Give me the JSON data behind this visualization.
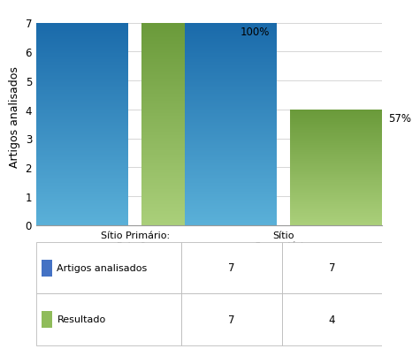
{
  "categories": [
    "Sítio Primário:\nPulmão",
    "Sítio\nSecundário:\nAbdominal"
  ],
  "series": [
    {
      "name": "Artigos analisados",
      "values": [
        7,
        7
      ],
      "color_top": "#1a6aaa",
      "color_bottom": "#5ab0d8"
    },
    {
      "name": "Resultado",
      "values": [
        7,
        4
      ],
      "color_top": "#6a9a3a",
      "color_bottom": "#aacf7a"
    }
  ],
  "annotations": [
    {
      "group": 0,
      "series": 1,
      "text": "100%"
    },
    {
      "group": 1,
      "series": 1,
      "text": "57%"
    }
  ],
  "ylabel": "Artigos analisados",
  "ylim": [
    0,
    7.5
  ],
  "yticks": [
    0,
    1,
    2,
    3,
    4,
    5,
    6,
    7
  ],
  "table_rows": [
    [
      "Artigos analisados",
      "7",
      "7"
    ],
    [
      "Resultado",
      "7",
      "4"
    ]
  ],
  "legend_colors": [
    "#4472c4",
    "#8fbc5a"
  ],
  "background_color": "#ffffff",
  "bar_width": 0.28,
  "bar_gap": 0.04,
  "group_positions": [
    0.3,
    0.75
  ]
}
